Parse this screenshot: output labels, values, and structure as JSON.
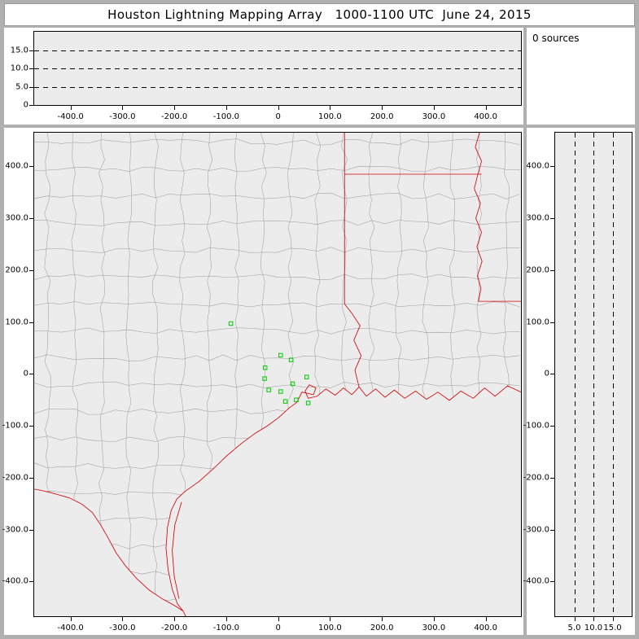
{
  "title": "Houston Lightning Mapping Array   1000-1100 UTC  June 24, 2015",
  "sources_panel": {
    "label": "0 sources"
  },
  "colors": {
    "frame_gray": "#b0b0b0",
    "panel_white": "#ffffff",
    "plot_background": "#ececec",
    "axis_black": "#000000",
    "county_line_gray": "#9a9a9a",
    "state_border_red": "#d40000",
    "station_green": "#00cc00"
  },
  "chart_data": [
    {
      "id": "alt_vs_eastwest",
      "type": "scatter",
      "description": "Altitude (km) vs east-west distance (km) projection, no source points plotted",
      "x_range": [
        -470,
        468
      ],
      "alt_range": [
        0,
        20
      ],
      "dashed_levels": [
        5,
        10,
        15
      ],
      "x_ticks": [
        {
          "label": "-400.0",
          "value": -400
        },
        {
          "label": "-300.0",
          "value": -300
        },
        {
          "label": "-200.0",
          "value": -200
        },
        {
          "label": "-100.0",
          "value": -100
        },
        {
          "label": "0",
          "value": 0
        },
        {
          "label": "100.0",
          "value": 100
        },
        {
          "label": "200.0",
          "value": 200
        },
        {
          "label": "300.0",
          "value": 300
        },
        {
          "label": "400.0",
          "value": 400
        }
      ],
      "alt_ticks": [
        {
          "label": "0",
          "value": 0
        },
        {
          "label": "5.0",
          "value": 5
        },
        {
          "label": "10.0",
          "value": 10
        },
        {
          "label": "15.0",
          "value": 15
        }
      ],
      "points": []
    },
    {
      "id": "plan_view_map",
      "type": "scatter",
      "description": "Plan view map (km east-west vs km north-south) with county and state borders; green squares are LMA stations",
      "x_range": [
        -470,
        468
      ],
      "y_range": [
        -467,
        465
      ],
      "x_ticks": [
        {
          "label": "-400.0",
          "value": -400
        },
        {
          "label": "-300.0",
          "value": -300
        },
        {
          "label": "-200.0",
          "value": -200
        },
        {
          "label": "-100.0",
          "value": -100
        },
        {
          "label": "0",
          "value": 0
        },
        {
          "label": "100.0",
          "value": 100
        },
        {
          "label": "200.0",
          "value": 200
        },
        {
          "label": "300.0",
          "value": 300
        },
        {
          "label": "400.0",
          "value": 400
        }
      ],
      "y_ticks": [
        {
          "label": "400.0",
          "value": 400
        },
        {
          "label": "300.0",
          "value": 300
        },
        {
          "label": "200.0",
          "value": 200
        },
        {
          "label": "100.0",
          "value": 100
        },
        {
          "label": "0",
          "value": 0
        },
        {
          "label": "-100.0",
          "value": -100
        },
        {
          "label": "-200.0",
          "value": -200
        },
        {
          "label": "-300.0",
          "value": -300
        },
        {
          "label": "-400.0",
          "value": -400
        }
      ],
      "stations": [
        {
          "x": -91,
          "y": 97
        },
        {
          "x": 5,
          "y": 36
        },
        {
          "x": 25,
          "y": 27
        },
        {
          "x": -25,
          "y": 12
        },
        {
          "x": -26,
          "y": -9
        },
        {
          "x": -18,
          "y": -31
        },
        {
          "x": 5,
          "y": -34
        },
        {
          "x": 28,
          "y": -19
        },
        {
          "x": 14,
          "y": -53
        },
        {
          "x": 35,
          "y": -50
        },
        {
          "x": 55,
          "y": -6
        },
        {
          "x": 58,
          "y": -56
        }
      ],
      "points": []
    },
    {
      "id": "alt_vs_northsouth",
      "type": "scatter",
      "description": "Altitude (km) vs north-south distance (km) projection, no source points plotted",
      "alt_range": [
        0,
        20
      ],
      "y_range": [
        -467,
        465
      ],
      "dashed_levels": [
        5,
        10,
        15
      ],
      "alt_ticks": [
        {
          "label": "5.0",
          "value": 5
        },
        {
          "label": "10.0",
          "value": 10
        },
        {
          "label": "15.0",
          "value": 15
        }
      ],
      "y_ticks": [
        {
          "label": "400.0",
          "value": 400
        },
        {
          "label": "300.0",
          "value": 300
        },
        {
          "label": "200.0",
          "value": 200
        },
        {
          "label": "100.0",
          "value": 100
        },
        {
          "label": "0",
          "value": 0
        },
        {
          "label": "-100.0",
          "value": -100
        },
        {
          "label": "-200.0",
          "value": -200
        },
        {
          "label": "-300.0",
          "value": -300
        },
        {
          "label": "-400.0",
          "value": -400
        }
      ],
      "points": []
    }
  ]
}
